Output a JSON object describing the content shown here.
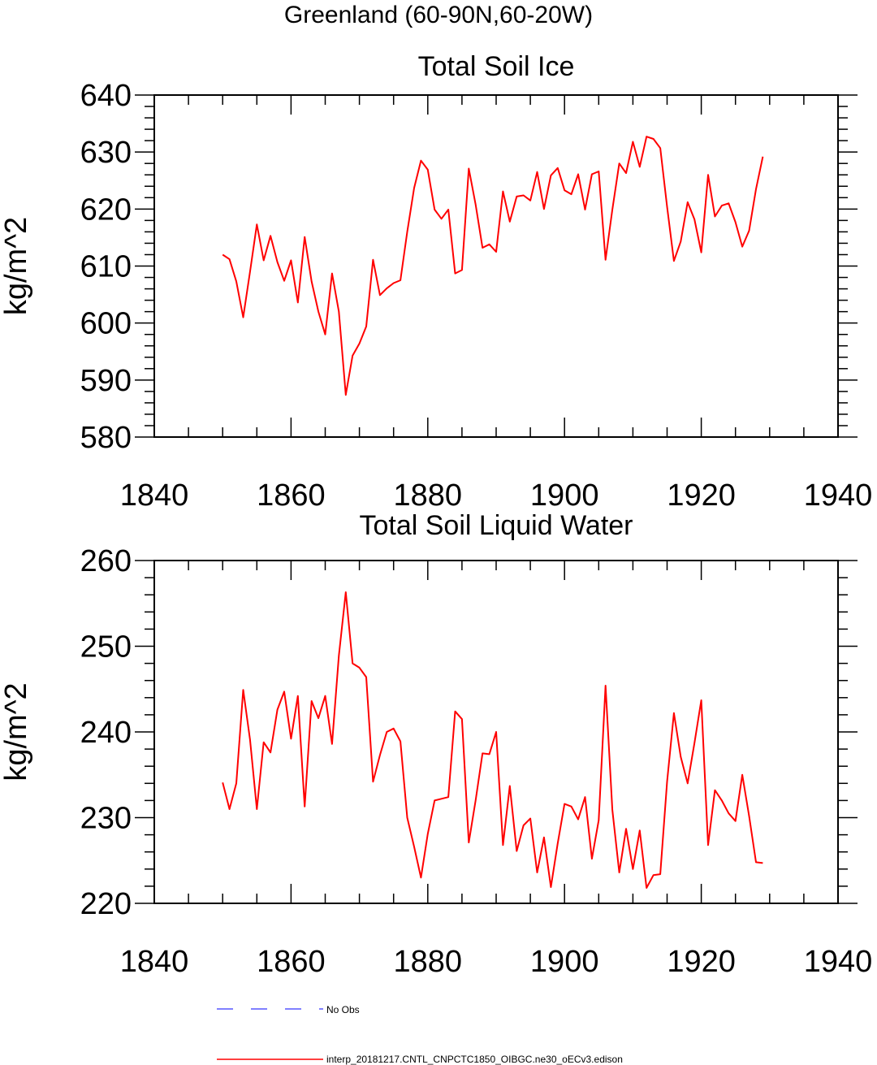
{
  "suptitle": "Greenland (60-90N,60-20W)",
  "chart_data": [
    {
      "type": "line",
      "title": "Total Soil Ice",
      "xlabel": "",
      "ylabel": "kg/m^2",
      "xlim": [
        1840,
        1940
      ],
      "ylim": [
        580,
        640
      ],
      "xticks": [
        1840,
        1860,
        1880,
        1900,
        1920,
        1940
      ],
      "yticks": [
        580,
        590,
        600,
        610,
        620,
        630,
        640
      ],
      "series": [
        {
          "name": "interp_20181217.CNTL_CNPCTC1850_OIBGC.ne30_oECv3.edison",
          "color": "#ff0000",
          "x": [
            1850,
            1851,
            1852,
            1853,
            1854,
            1855,
            1856,
            1857,
            1858,
            1859,
            1860,
            1861,
            1862,
            1863,
            1864,
            1865,
            1866,
            1867,
            1868,
            1869,
            1870,
            1871,
            1872,
            1873,
            1874,
            1875,
            1876,
            1877,
            1878,
            1879,
            1880,
            1881,
            1882,
            1883,
            1884,
            1885,
            1886,
            1887,
            1888,
            1889,
            1890,
            1891,
            1892,
            1893,
            1894,
            1895,
            1896,
            1897,
            1898,
            1899,
            1900,
            1901,
            1902,
            1903,
            1904,
            1905,
            1906,
            1907,
            1908,
            1909,
            1910,
            1911,
            1912,
            1913,
            1914,
            1915,
            1916,
            1917,
            1918,
            1919,
            1920,
            1921,
            1922,
            1923,
            1924,
            1925,
            1926,
            1927,
            1928,
            1929
          ],
          "values": [
            612.0,
            611.2,
            607.3,
            601.0,
            609.0,
            617.3,
            611.0,
            615.3,
            610.7,
            607.4,
            611.0,
            603.6,
            615.1,
            607.3,
            602.0,
            598.0,
            608.7,
            602.0,
            587.4,
            594.3,
            596.4,
            599.4,
            611.1,
            604.9,
            606.1,
            607.0,
            607.5,
            616.0,
            623.7,
            628.5,
            626.9,
            619.9,
            618.3,
            619.9,
            608.7,
            609.3,
            627.1,
            620.8,
            613.2,
            613.8,
            612.5,
            623.1,
            617.8,
            622.2,
            622.4,
            621.5,
            626.5,
            620.0,
            625.9,
            627.2,
            623.3,
            622.6,
            626.1,
            619.9,
            626.1,
            626.6,
            611.1,
            619.9,
            628.0,
            626.3,
            631.8,
            627.4,
            632.7,
            632.3,
            630.7,
            620.4,
            610.9,
            614.3,
            621.2,
            618.2,
            612.4,
            626.0,
            618.7,
            620.6,
            621.0,
            617.7,
            613.4,
            616.2,
            623.5,
            629.2
          ]
        }
      ]
    },
    {
      "type": "line",
      "title": "Total Soil Liquid Water",
      "xlabel": "",
      "ylabel": "kg/m^2",
      "xlim": [
        1840,
        1940
      ],
      "ylim": [
        220,
        260
      ],
      "xticks": [
        1840,
        1860,
        1880,
        1900,
        1920,
        1940
      ],
      "yticks": [
        220,
        230,
        240,
        250,
        260
      ],
      "series": [
        {
          "name": "interp_20181217.CNTL_CNPCTC1850_OIBGC.ne30_oECv3.edison",
          "color": "#ff0000",
          "x": [
            1850,
            1851,
            1852,
            1853,
            1854,
            1855,
            1856,
            1857,
            1858,
            1859,
            1860,
            1861,
            1862,
            1863,
            1864,
            1865,
            1866,
            1867,
            1868,
            1869,
            1870,
            1871,
            1872,
            1873,
            1874,
            1875,
            1876,
            1877,
            1878,
            1879,
            1880,
            1881,
            1882,
            1883,
            1884,
            1885,
            1886,
            1887,
            1888,
            1889,
            1890,
            1891,
            1892,
            1893,
            1894,
            1895,
            1896,
            1897,
            1898,
            1899,
            1900,
            1901,
            1902,
            1903,
            1904,
            1905,
            1906,
            1907,
            1908,
            1909,
            1910,
            1911,
            1912,
            1913,
            1914,
            1915,
            1916,
            1917,
            1918,
            1919,
            1920,
            1921,
            1922,
            1923,
            1924,
            1925,
            1926,
            1927,
            1928,
            1929
          ],
          "values": [
            234.1,
            231.0,
            234.0,
            244.9,
            239.1,
            231.0,
            238.8,
            237.6,
            242.6,
            244.7,
            239.2,
            244.2,
            231.3,
            243.6,
            241.6,
            244.2,
            238.6,
            248.9,
            256.3,
            248.0,
            247.5,
            246.4,
            234.2,
            237.3,
            240.0,
            240.4,
            238.9,
            230.0,
            226.6,
            223.0,
            228.1,
            232.0,
            232.2,
            232.4,
            242.4,
            241.5,
            227.1,
            232.0,
            237.5,
            237.4,
            240.0,
            226.8,
            233.7,
            226.1,
            229.1,
            229.9,
            223.6,
            227.7,
            221.9,
            227.0,
            231.6,
            231.3,
            229.8,
            232.4,
            225.2,
            229.7,
            245.4,
            230.9,
            223.6,
            228.7,
            224.0,
            228.5,
            221.8,
            223.3,
            223.4,
            234.2,
            242.2,
            237.1,
            234.0,
            238.7,
            243.7,
            226.8,
            233.2,
            232.0,
            230.5,
            229.6,
            235.0,
            230.2,
            224.8,
            224.7
          ]
        }
      ]
    }
  ],
  "legend": {
    "no_obs_label": "No Obs",
    "no_obs_color": "#0000ff",
    "model_label": "interp_20181217.CNTL_CNPCTC1850_OIBGC.ne30_oECv3.edison",
    "model_color": "#ff0000"
  }
}
